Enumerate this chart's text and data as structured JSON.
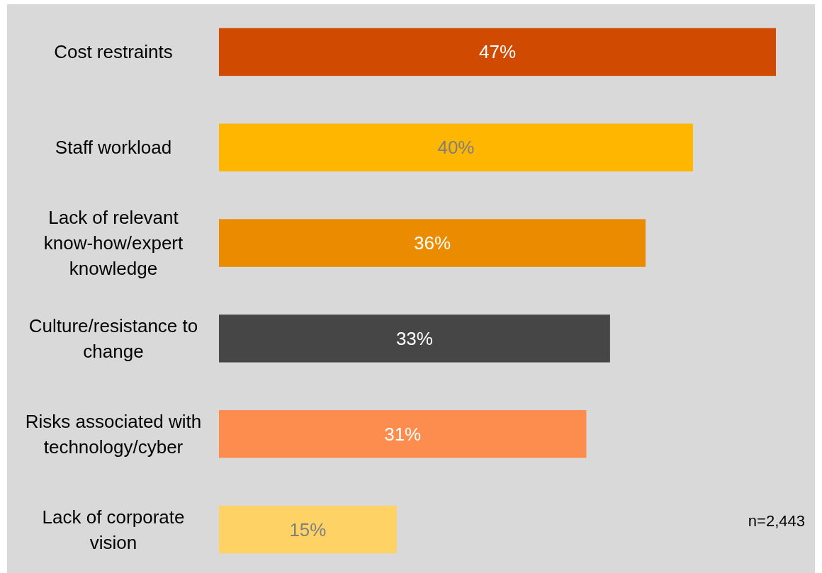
{
  "chart_data": {
    "type": "bar",
    "orientation": "horizontal",
    "categories": [
      "Cost restraints",
      "Staff workload",
      "Lack of relevant know-how/expert knowledge",
      "Culture/resistance to change",
      "Risks associated with technology/cyber",
      "Lack of corporate vision"
    ],
    "values": [
      47,
      40,
      36,
      33,
      31,
      15
    ],
    "colors": [
      "#d04a02",
      "#ffb600",
      "#eb8c00",
      "#464646",
      "#fd8c4f",
      "#ffd266"
    ],
    "value_labels": [
      "47%",
      "40%",
      "36%",
      "33%",
      "31%",
      "15%"
    ],
    "annotations": [
      "n=2,443"
    ]
  }
}
